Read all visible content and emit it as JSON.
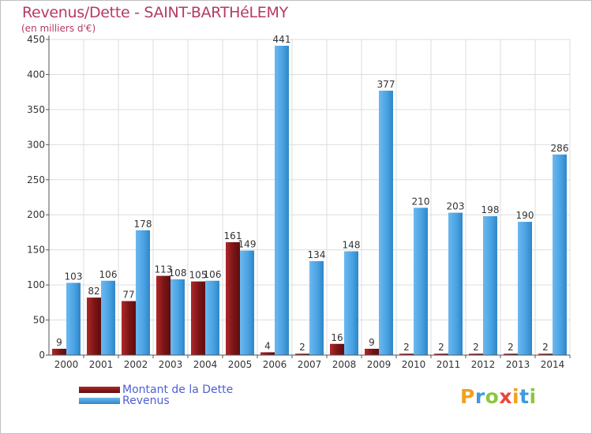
{
  "chart": {
    "title": "Revenus/Dette - SAINT-BARTHéLEMY",
    "unit_label": "(en milliers d'€)"
  },
  "brand": {
    "logo_text": "Proxiti"
  },
  "colors": {
    "debt": "#7a1416",
    "debt_light": "#b0282a",
    "revenue": "#4aa3e4",
    "revenue_light": "#6cb8ee",
    "axis": "#555555",
    "grid": "#dddddd",
    "title": "#b53a64",
    "legend_text": "#4d5fd6"
  },
  "chart_data": {
    "type": "bar",
    "title": "Revenus/Dette - SAINT-BARTHéLEMY",
    "ylabel": "(en milliers d'€)",
    "xlabel": "",
    "ylim": [
      0,
      450
    ],
    "yticks": [
      0,
      50,
      100,
      150,
      200,
      250,
      300,
      350,
      400,
      450
    ],
    "grid": true,
    "legend_position": "bottom-left",
    "categories": [
      "2000",
      "2001",
      "2002",
      "2003",
      "2004",
      "2005",
      "2006",
      "2007",
      "2008",
      "2009",
      "2010",
      "2011",
      "2012",
      "2013",
      "2014"
    ],
    "series": [
      {
        "name": "Montant de la Dette",
        "values": [
          9,
          82,
          77,
          113,
          105,
          161,
          4,
          2,
          16,
          9,
          2,
          2,
          2,
          2,
          2
        ]
      },
      {
        "name": "Revenus",
        "values": [
          103,
          106,
          178,
          108,
          106,
          149,
          441,
          134,
          148,
          377,
          210,
          203,
          198,
          190,
          286
        ]
      }
    ]
  }
}
